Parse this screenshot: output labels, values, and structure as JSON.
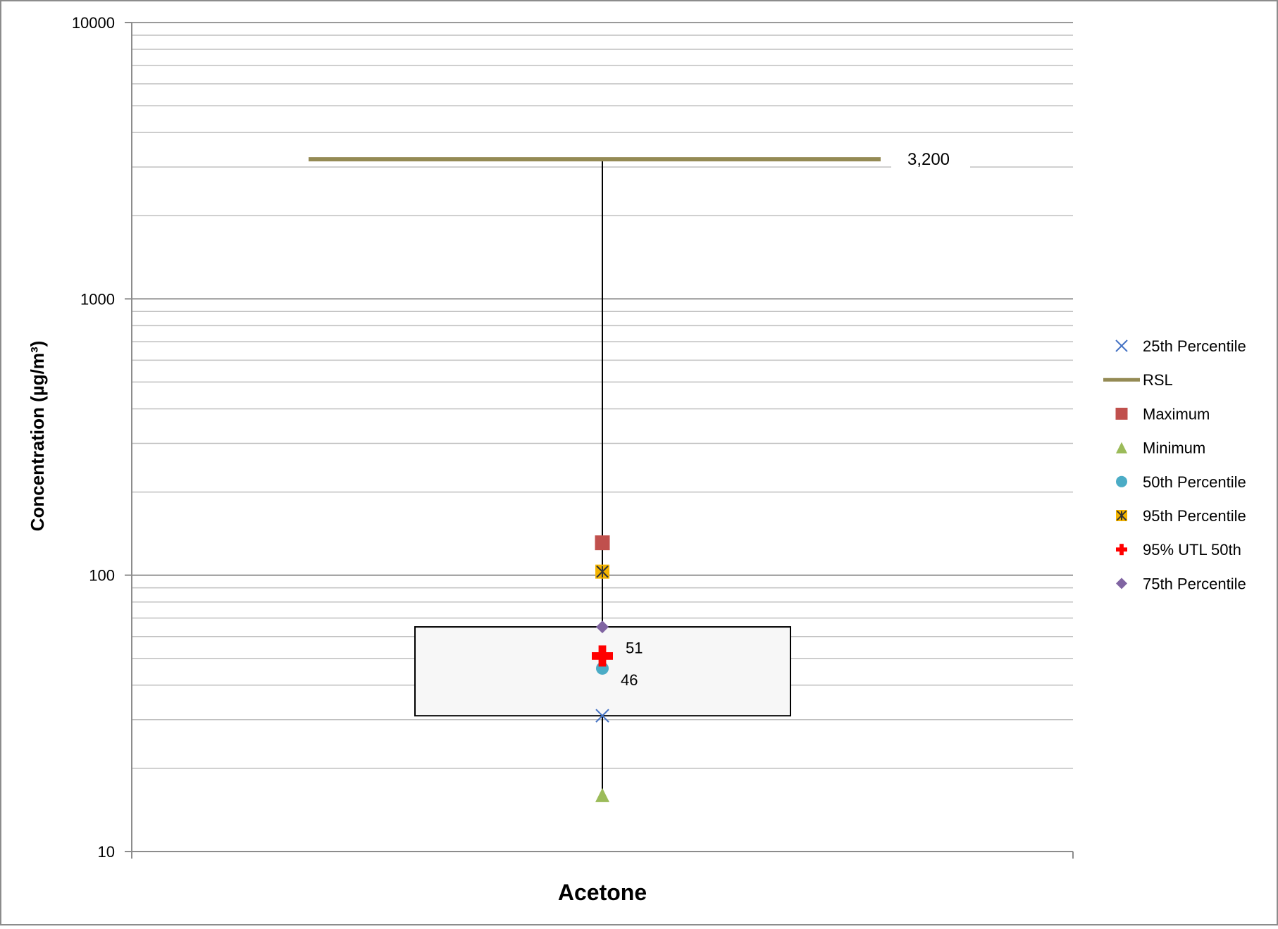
{
  "chart_data": {
    "type": "box",
    "category": "Acetone",
    "ylabel": "Concentration (µg/m³)",
    "y_scale": "log",
    "ylim": [
      10,
      10000
    ],
    "y_ticks": [
      "10",
      "100",
      "1000",
      "10000"
    ],
    "grid": "horizontal major and minor",
    "legend_position": "right",
    "stats": {
      "minimum": 16,
      "p25": 31,
      "p50": 46,
      "p75": 65,
      "p95": 103,
      "maximum": 131,
      "utl95_50th": 51,
      "rsl": 3200
    },
    "data_labels": {
      "rsl": "3,200",
      "utl95_50th": "51",
      "p50": "46"
    },
    "legend": [
      {
        "key": "p25",
        "label": "25th Percentile",
        "marker": "x",
        "color": "#4472C4"
      },
      {
        "key": "rsl",
        "label": "RSL",
        "marker": "line",
        "color": "#948A54"
      },
      {
        "key": "maximum",
        "label": "Maximum",
        "marker": "square",
        "color": "#C0504D"
      },
      {
        "key": "minimum",
        "label": "Minimum",
        "marker": "triangle",
        "color": "#9BBB59"
      },
      {
        "key": "p50",
        "label": "50th Percentile",
        "marker": "circle",
        "color": "#4BACC6"
      },
      {
        "key": "p95",
        "label": "95th Percentile",
        "marker": "asterisk-square",
        "color": "#F4B400"
      },
      {
        "key": "utl95_50th",
        "label": "95% UTL 50th",
        "marker": "plus",
        "color": "#FF0000"
      },
      {
        "key": "p75",
        "label": "75th Percentile",
        "marker": "diamond",
        "color": "#8064A2"
      }
    ]
  }
}
